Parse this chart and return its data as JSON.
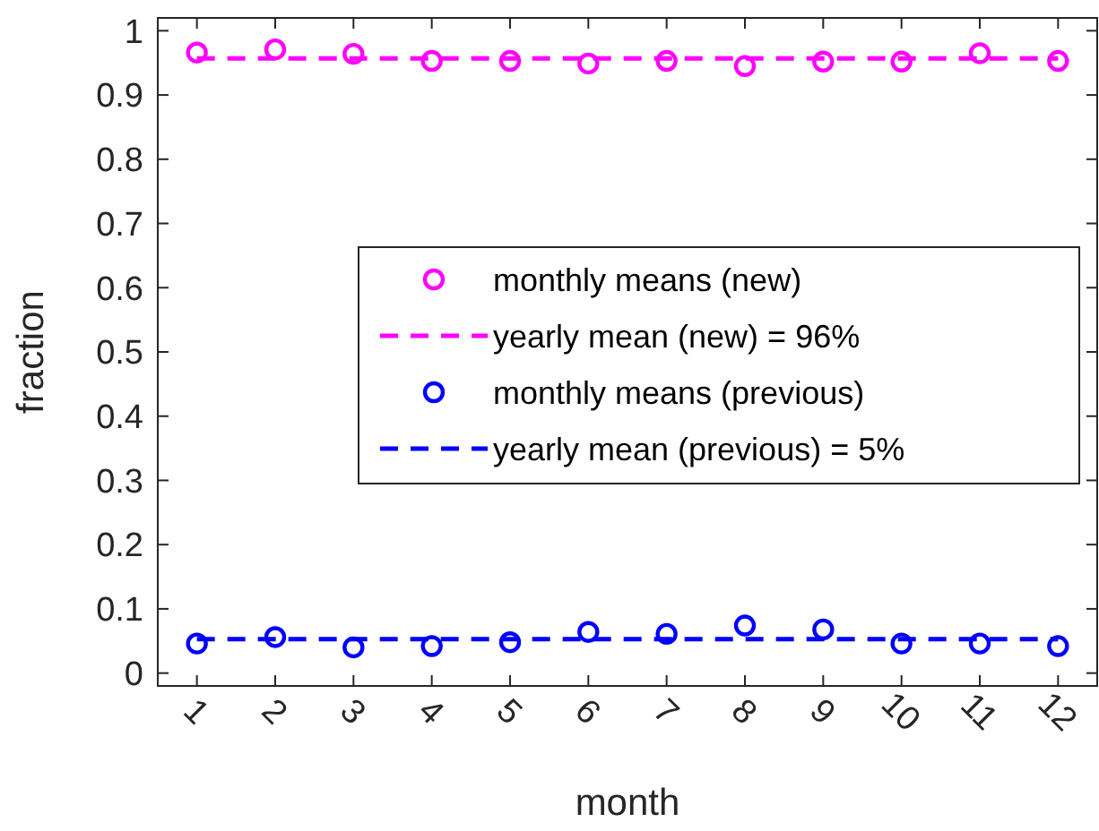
{
  "chart_data": {
    "type": "scatter",
    "xlabel": "month",
    "ylabel": "fraction",
    "xlim": [
      0.5,
      12.5
    ],
    "xticks": [
      1,
      2,
      3,
      4,
      5,
      6,
      7,
      8,
      9,
      10,
      11,
      12
    ],
    "ylim": [
      -0.02,
      1.02
    ],
    "yticks": [
      0,
      0.1,
      0.2,
      0.3,
      0.4,
      0.5,
      0.6,
      0.7,
      0.8,
      0.9,
      1
    ],
    "grid": false,
    "legend": "right",
    "marker": "circle",
    "x": [
      1,
      2,
      3,
      4,
      5,
      6,
      7,
      8,
      9,
      10,
      11,
      12
    ],
    "series": [
      {
        "name": "monthly means (new)",
        "color": "#ff00ff",
        "values": [
          0.966,
          0.971,
          0.964,
          0.953,
          0.953,
          0.949,
          0.953,
          0.945,
          0.952,
          0.952,
          0.965,
          0.953
        ]
      },
      {
        "name": "monthly means (previous)",
        "color": "#0000ff",
        "values": [
          0.046,
          0.056,
          0.04,
          0.042,
          0.048,
          0.064,
          0.061,
          0.074,
          0.068,
          0.046,
          0.046,
          0.042
        ]
      }
    ],
    "ref_lines": [
      {
        "axis": "y",
        "value": 0.957,
        "label": "yearly mean (new) = 96%",
        "color": "#ff00ff",
        "line_style": "dashed"
      },
      {
        "axis": "y",
        "value": 0.053,
        "label": "yearly mean (previous) = 5%",
        "color": "#0000ff",
        "line_style": "dashed"
      }
    ]
  }
}
